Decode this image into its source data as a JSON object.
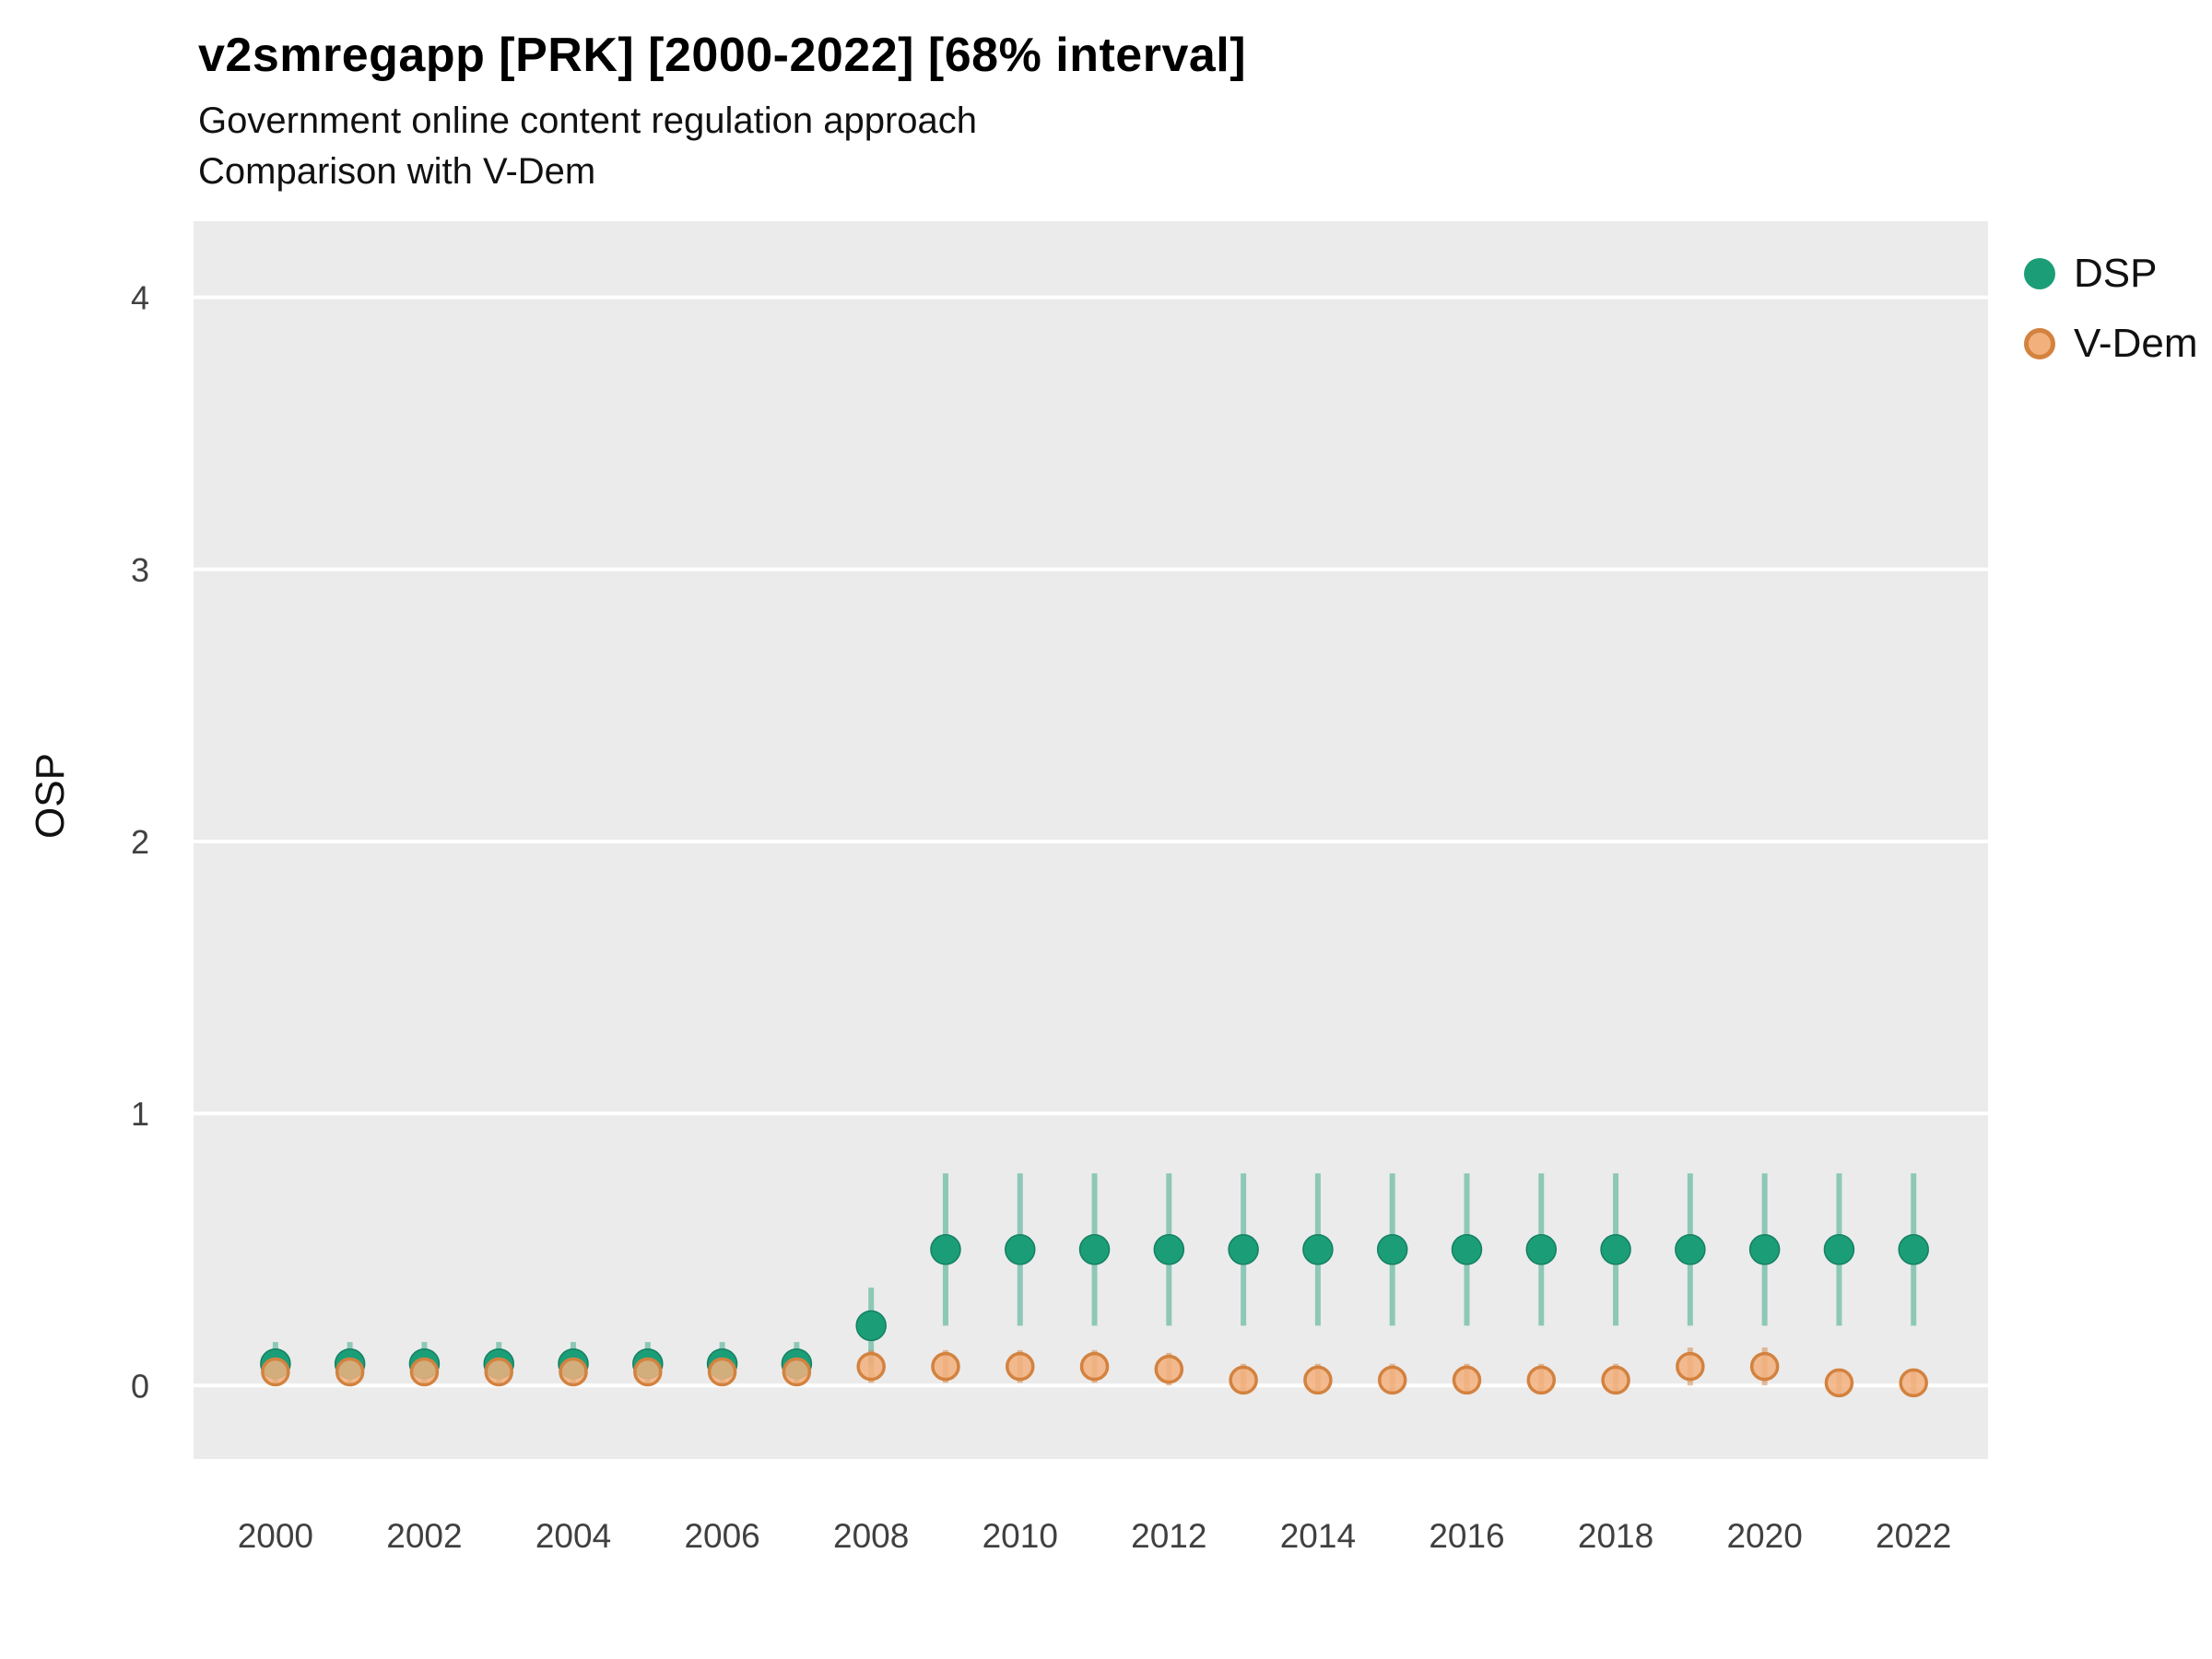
{
  "header": {
    "title": "v2smregapp [PRK] [2000-2022] [68% interval]",
    "subtitle1": "Government online content regulation approach",
    "subtitle2": "Comparison with V-Dem"
  },
  "axes": {
    "y_label": "OSP"
  },
  "legend": {
    "items": [
      {
        "label": "DSP",
        "fill": "#1b9e77",
        "stroke": "#1b9e77"
      },
      {
        "label": "V-Dem",
        "fill": "#f2b07c",
        "stroke": "#d3823f"
      }
    ]
  },
  "chart_data": {
    "type": "scatter",
    "title": "v2smregapp [PRK] [2000-2022] [68% interval]",
    "subtitle": "Government online content regulation approach — Comparison with V-Dem",
    "xlabel": "",
    "ylabel": "OSP",
    "xlim": [
      1998.9,
      2023.0
    ],
    "ylim": [
      -0.27,
      4.28
    ],
    "x_ticks": [
      2000,
      2002,
      2004,
      2006,
      2008,
      2010,
      2012,
      2014,
      2016,
      2018,
      2020,
      2022
    ],
    "y_ticks": [
      0,
      1,
      2,
      3,
      4
    ],
    "grid": "major-horizontal",
    "panel_bg": "#ebebeb",
    "grid_color": "#ffffff",
    "legend_position": "right",
    "series": [
      {
        "name": "DSP",
        "point_fill": "#1b9e77",
        "point_stroke": "#148063",
        "bar_color": "rgba(27,158,119,0.45)",
        "points": [
          {
            "year": 2000,
            "value": 0.08,
            "lo": 0.01,
            "hi": 0.16
          },
          {
            "year": 2001,
            "value": 0.08,
            "lo": 0.01,
            "hi": 0.16
          },
          {
            "year": 2002,
            "value": 0.08,
            "lo": 0.01,
            "hi": 0.16
          },
          {
            "year": 2003,
            "value": 0.08,
            "lo": 0.01,
            "hi": 0.16
          },
          {
            "year": 2004,
            "value": 0.08,
            "lo": 0.01,
            "hi": 0.16
          },
          {
            "year": 2005,
            "value": 0.08,
            "lo": 0.01,
            "hi": 0.16
          },
          {
            "year": 2006,
            "value": 0.08,
            "lo": 0.01,
            "hi": 0.16
          },
          {
            "year": 2007,
            "value": 0.08,
            "lo": 0.01,
            "hi": 0.16
          },
          {
            "year": 2008,
            "value": 0.22,
            "lo": 0.07,
            "hi": 0.36
          },
          {
            "year": 2009,
            "value": 0.5,
            "lo": 0.22,
            "hi": 0.78
          },
          {
            "year": 2010,
            "value": 0.5,
            "lo": 0.22,
            "hi": 0.78
          },
          {
            "year": 2011,
            "value": 0.5,
            "lo": 0.22,
            "hi": 0.78
          },
          {
            "year": 2012,
            "value": 0.5,
            "lo": 0.22,
            "hi": 0.78
          },
          {
            "year": 2013,
            "value": 0.5,
            "lo": 0.22,
            "hi": 0.78
          },
          {
            "year": 2014,
            "value": 0.5,
            "lo": 0.22,
            "hi": 0.78
          },
          {
            "year": 2015,
            "value": 0.5,
            "lo": 0.22,
            "hi": 0.78
          },
          {
            "year": 2016,
            "value": 0.5,
            "lo": 0.22,
            "hi": 0.78
          },
          {
            "year": 2017,
            "value": 0.5,
            "lo": 0.22,
            "hi": 0.78
          },
          {
            "year": 2018,
            "value": 0.5,
            "lo": 0.22,
            "hi": 0.78
          },
          {
            "year": 2019,
            "value": 0.5,
            "lo": 0.22,
            "hi": 0.78
          },
          {
            "year": 2020,
            "value": 0.5,
            "lo": 0.22,
            "hi": 0.78
          },
          {
            "year": 2021,
            "value": 0.5,
            "lo": 0.22,
            "hi": 0.78
          },
          {
            "year": 2022,
            "value": 0.5,
            "lo": 0.22,
            "hi": 0.78
          }
        ]
      },
      {
        "name": "V-Dem",
        "point_fill": "#f2b07c",
        "point_stroke": "#d3823f",
        "bar_color": "rgba(211,130,63,0.5)",
        "points": [
          {
            "year": 2000,
            "value": 0.05,
            "lo": 0.0,
            "hi": 0.11
          },
          {
            "year": 2001,
            "value": 0.05,
            "lo": 0.0,
            "hi": 0.11
          },
          {
            "year": 2002,
            "value": 0.05,
            "lo": 0.0,
            "hi": 0.11
          },
          {
            "year": 2003,
            "value": 0.05,
            "lo": 0.0,
            "hi": 0.11
          },
          {
            "year": 2004,
            "value": 0.05,
            "lo": 0.0,
            "hi": 0.11
          },
          {
            "year": 2005,
            "value": 0.05,
            "lo": 0.0,
            "hi": 0.11
          },
          {
            "year": 2006,
            "value": 0.05,
            "lo": 0.0,
            "hi": 0.11
          },
          {
            "year": 2007,
            "value": 0.05,
            "lo": 0.0,
            "hi": 0.11
          },
          {
            "year": 2008,
            "value": 0.07,
            "lo": 0.01,
            "hi": 0.13
          },
          {
            "year": 2009,
            "value": 0.07,
            "lo": 0.01,
            "hi": 0.13
          },
          {
            "year": 2010,
            "value": 0.07,
            "lo": 0.01,
            "hi": 0.13
          },
          {
            "year": 2011,
            "value": 0.07,
            "lo": 0.01,
            "hi": 0.13
          },
          {
            "year": 2012,
            "value": 0.06,
            "lo": 0.0,
            "hi": 0.12
          },
          {
            "year": 2013,
            "value": 0.02,
            "lo": -0.03,
            "hi": 0.08
          },
          {
            "year": 2014,
            "value": 0.02,
            "lo": -0.03,
            "hi": 0.08
          },
          {
            "year": 2015,
            "value": 0.02,
            "lo": -0.03,
            "hi": 0.08
          },
          {
            "year": 2016,
            "value": 0.02,
            "lo": -0.03,
            "hi": 0.08
          },
          {
            "year": 2017,
            "value": 0.02,
            "lo": -0.03,
            "hi": 0.08
          },
          {
            "year": 2018,
            "value": 0.02,
            "lo": -0.03,
            "hi": 0.08
          },
          {
            "year": 2019,
            "value": 0.07,
            "lo": 0.0,
            "hi": 0.14
          },
          {
            "year": 2020,
            "value": 0.07,
            "lo": 0.0,
            "hi": 0.14
          },
          {
            "year": 2021,
            "value": 0.01,
            "lo": -0.04,
            "hi": 0.06
          },
          {
            "year": 2022,
            "value": 0.01,
            "lo": -0.04,
            "hi": 0.06
          }
        ]
      }
    ]
  }
}
